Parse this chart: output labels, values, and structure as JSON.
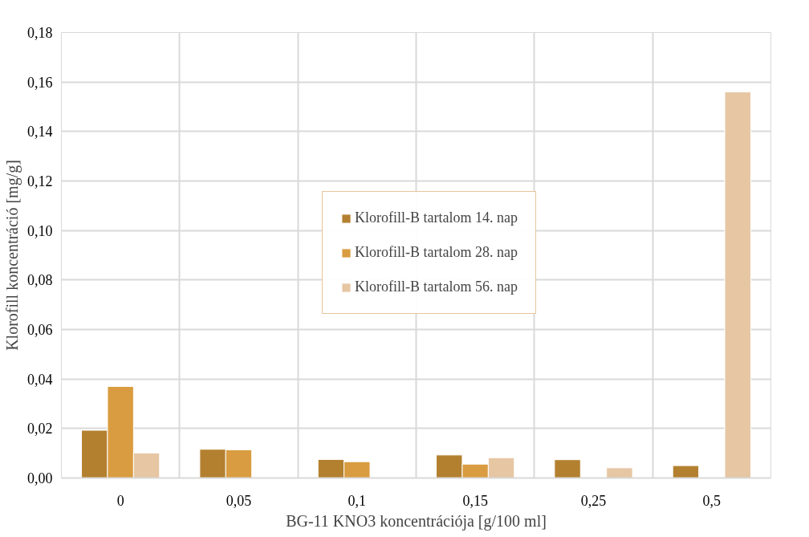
{
  "chart_data": {
    "type": "bar",
    "xlabel": "BG-11 KNO3 koncentrációja [g/100 ml]",
    "ylabel": "Klorofill koncentráció [mg/g]",
    "categories": [
      "0",
      "0,05",
      "0,1",
      "0,15",
      "0,25",
      "0,5"
    ],
    "series": [
      {
        "name": "Klorofill-B tartalom 14. nap",
        "color": "#b38030",
        "values": [
          0.0193,
          0.0116,
          0.0075,
          0.0093,
          0.0074,
          0.005
        ]
      },
      {
        "name": "Klorofill-B tartalom 28. nap",
        "color": "#d99c40",
        "values": [
          0.037,
          0.0114,
          0.0066,
          0.0056,
          null,
          null
        ]
      },
      {
        "name": "Klorofill-B tartalom 56. nap",
        "color": "#e6c6a3",
        "values": [
          0.0101,
          null,
          null,
          0.0082,
          0.0041,
          0.156
        ]
      }
    ],
    "ylim": [
      0,
      0.18
    ],
    "yticks": [
      {
        "value": 0,
        "label": "0,00"
      },
      {
        "value": 0.02,
        "label": "0,02"
      },
      {
        "value": 0.04,
        "label": "0,04"
      },
      {
        "value": 0.06,
        "label": "0,06"
      },
      {
        "value": 0.08,
        "label": "0,08"
      },
      {
        "value": 0.1,
        "label": "0,10"
      },
      {
        "value": 0.12,
        "label": "0,12"
      },
      {
        "value": 0.14,
        "label": "0,14"
      },
      {
        "value": 0.16,
        "label": "0,16"
      },
      {
        "value": 0.18,
        "label": "0,18"
      }
    ],
    "grid": true,
    "legend": "center"
  }
}
